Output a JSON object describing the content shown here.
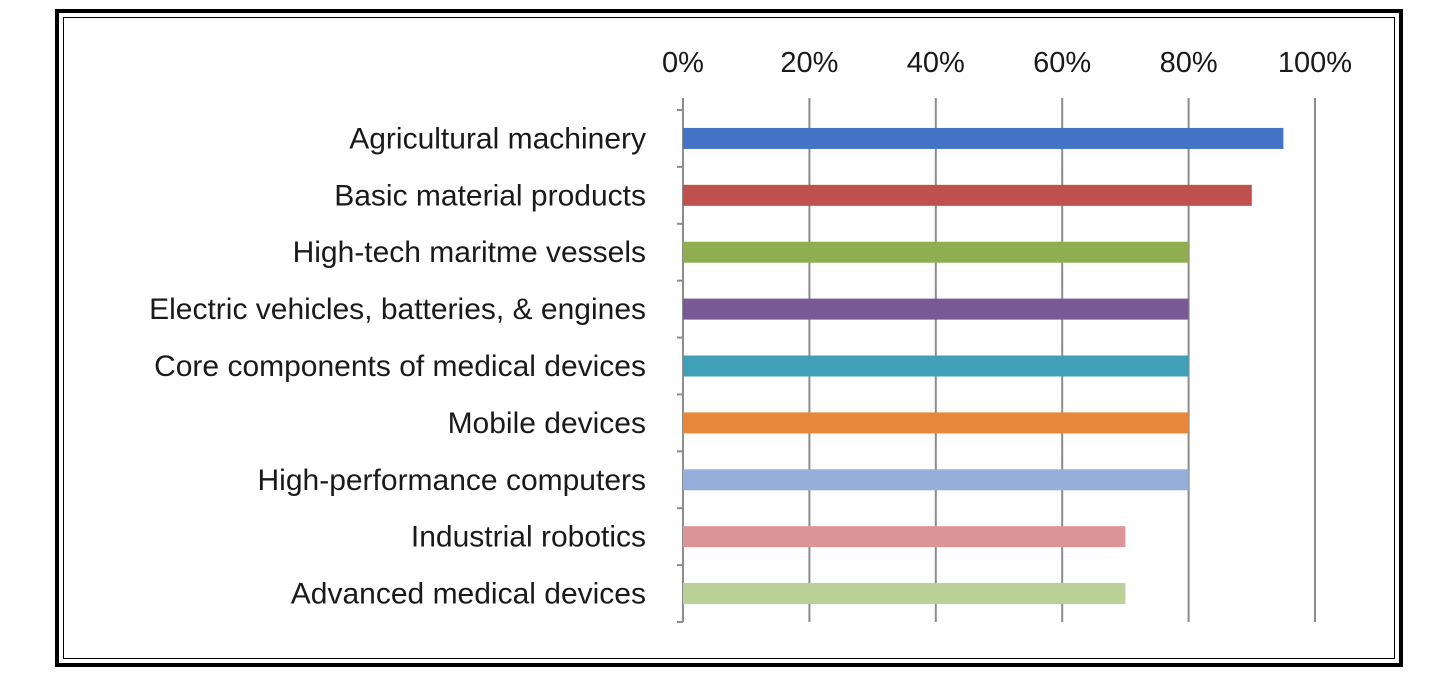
{
  "chart_data": {
    "type": "bar",
    "orientation": "horizontal",
    "title": "",
    "xlabel": "",
    "ylabel": "",
    "xlim": [
      0,
      100
    ],
    "tick_values": [
      0,
      20,
      40,
      60,
      80,
      100
    ],
    "tick_labels": [
      "0%",
      "20%",
      "40%",
      "60%",
      "80%",
      "100%"
    ],
    "grid": true,
    "legend": "none",
    "categories": [
      "Agricultural machinery",
      "Basic material products",
      "High-tech maritme vessels",
      "Electric vehicles, batteries, & engines",
      "Core components of medical devices",
      "Mobile devices",
      "High-performance computers",
      "Industrial robotics",
      "Advanced medical devices"
    ],
    "values": [
      95,
      90,
      80,
      80,
      80,
      80,
      80,
      70,
      70
    ],
    "colors": [
      "#4472C4",
      "#C0504D",
      "#8FAE4F",
      "#7A5A96",
      "#40A0B8",
      "#E8873A",
      "#96AEDA",
      "#DC9596",
      "#B9D097"
    ]
  }
}
